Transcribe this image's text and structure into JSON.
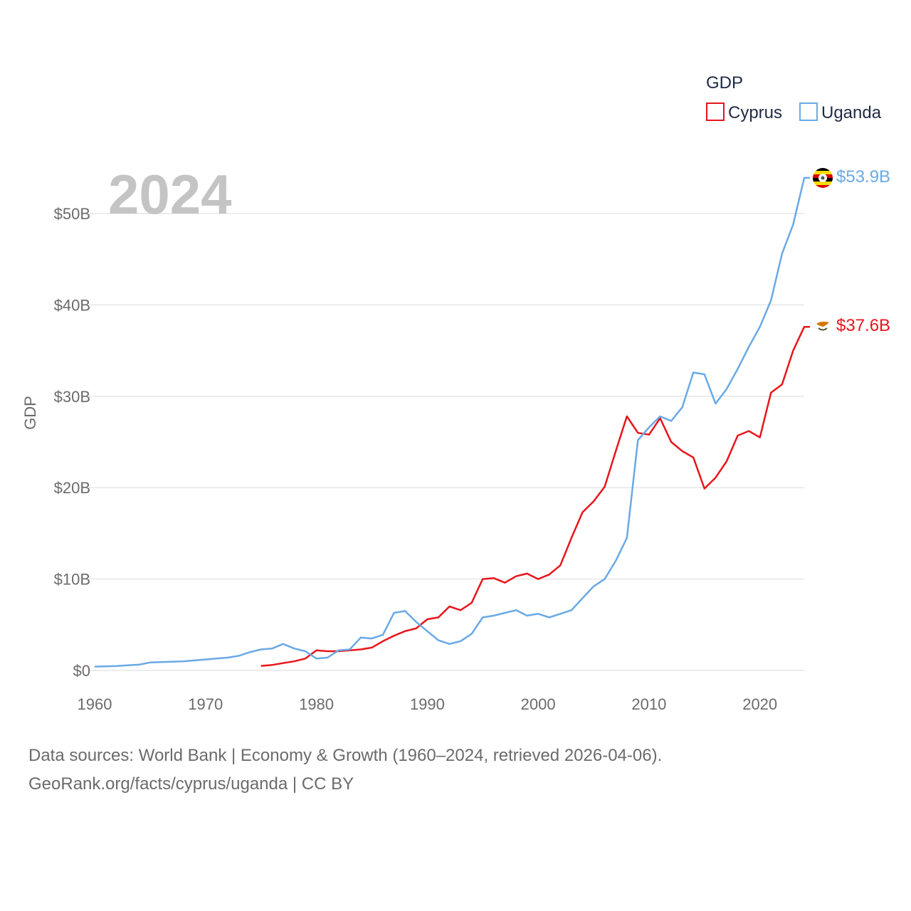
{
  "chart_data": {
    "type": "line",
    "legend_title": "GDP",
    "ylabel": "GDP",
    "xlabel": "",
    "year_label": "2024",
    "xlim": [
      1960,
      2024
    ],
    "ylim": [
      0,
      55
    ],
    "x_ticks": [
      1960,
      1970,
      1980,
      1990,
      2000,
      2010,
      2020
    ],
    "y_ticks": [
      0,
      10,
      20,
      30,
      40,
      50
    ],
    "y_tick_labels": [
      "$0",
      "$10B",
      "$20B",
      "$30B",
      "$40B",
      "$50B"
    ],
    "unit": "billion USD",
    "series": [
      {
        "name": "Cyprus",
        "color": "#e8151b",
        "end_label": "$37.6B",
        "x": [
          1975,
          1976,
          1977,
          1978,
          1979,
          1980,
          1981,
          1982,
          1983,
          1984,
          1985,
          1986,
          1987,
          1988,
          1989,
          1990,
          1991,
          1992,
          1993,
          1994,
          1995,
          1996,
          1997,
          1998,
          1999,
          2000,
          2001,
          2002,
          2003,
          2004,
          2005,
          2006,
          2007,
          2008,
          2009,
          2010,
          2011,
          2012,
          2013,
          2014,
          2015,
          2016,
          2017,
          2018,
          2019,
          2020,
          2021,
          2022,
          2023,
          2024
        ],
        "values": [
          0.5,
          0.6,
          0.8,
          1.0,
          1.3,
          2.2,
          2.1,
          2.1,
          2.2,
          2.3,
          2.5,
          3.2,
          3.8,
          4.3,
          4.6,
          5.6,
          5.8,
          7.0,
          6.6,
          7.4,
          10.0,
          10.1,
          9.6,
          10.3,
          10.6,
          10.0,
          10.5,
          11.5,
          14.5,
          17.3,
          18.5,
          20.1,
          24.0,
          27.8,
          26.0,
          25.8,
          27.6,
          25.0,
          24.0,
          23.3,
          19.9,
          21.1,
          22.9,
          25.7,
          26.2,
          25.5,
          30.4,
          31.3,
          35.0,
          37.6
        ]
      },
      {
        "name": "Uganda",
        "color": "#6aa9e5",
        "end_label": "$53.9B",
        "x": [
          1960,
          1961,
          1962,
          1963,
          1964,
          1965,
          1966,
          1967,
          1968,
          1969,
          1970,
          1971,
          1972,
          1973,
          1974,
          1975,
          1976,
          1977,
          1978,
          1979,
          1980,
          1981,
          1982,
          1983,
          1984,
          1985,
          1986,
          1987,
          1988,
          1989,
          1990,
          1991,
          1992,
          1993,
          1994,
          1995,
          1996,
          1997,
          1998,
          1999,
          2000,
          2001,
          2002,
          2003,
          2004,
          2005,
          2006,
          2007,
          2008,
          2009,
          2010,
          2011,
          2012,
          2013,
          2014,
          2015,
          2016,
          2017,
          2018,
          2019,
          2020,
          2021,
          2022,
          2023,
          2024
        ],
        "values": [
          0.42,
          0.45,
          0.48,
          0.56,
          0.63,
          0.87,
          0.92,
          0.95,
          1.0,
          1.1,
          1.2,
          1.3,
          1.4,
          1.6,
          2.0,
          2.3,
          2.4,
          2.9,
          2.4,
          2.1,
          1.3,
          1.4,
          2.2,
          2.3,
          3.6,
          3.5,
          3.9,
          6.3,
          6.5,
          5.3,
          4.3,
          3.3,
          2.9,
          3.2,
          4.0,
          5.8,
          6.0,
          6.3,
          6.6,
          6.0,
          6.2,
          5.8,
          6.2,
          6.6,
          7.9,
          9.2,
          10.0,
          12.0,
          14.5,
          25.2,
          26.6,
          27.8,
          27.3,
          28.8,
          32.6,
          32.4,
          29.2,
          30.8,
          33.0,
          35.4,
          37.6,
          40.5,
          45.6,
          48.8,
          53.9
        ]
      }
    ]
  },
  "footer": {
    "line1": "Data sources: World Bank | Economy & Growth (1960–2024, retrieved 2026-04-06).",
    "line2": "GeoRank.org/facts/cyprus/uganda | CC BY"
  },
  "icons": {
    "uganda": "uganda-flag-icon",
    "cyprus": "cyprus-flag-icon"
  }
}
